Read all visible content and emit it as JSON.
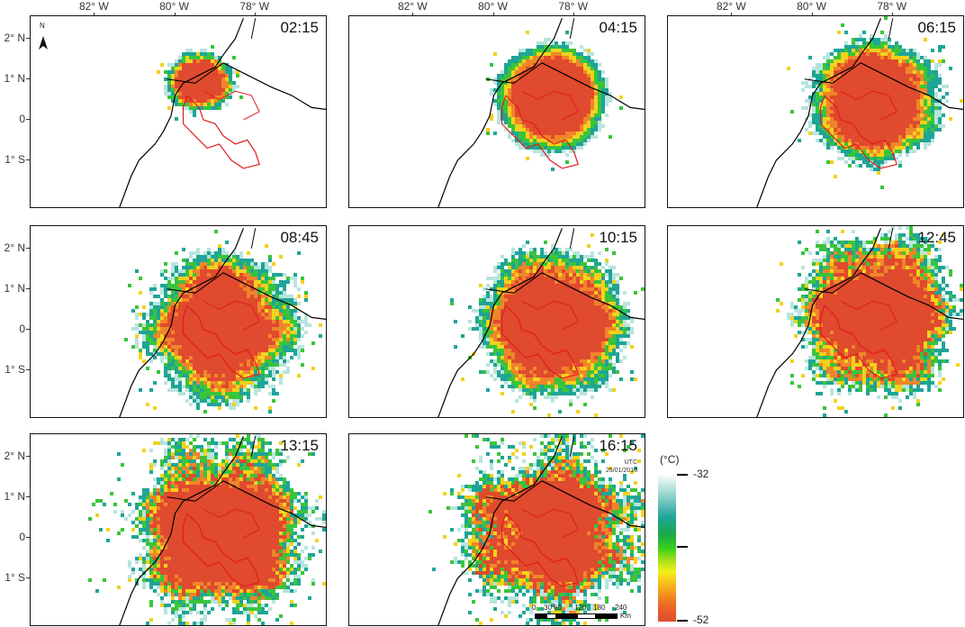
{
  "panels": [
    {
      "time": "02:15",
      "cx": -79.4,
      "cy": 1.0,
      "r": 0.75,
      "rough": 0.3
    },
    {
      "time": "04:15",
      "cx": -78.6,
      "cy": 0.6,
      "r": 1.3,
      "rough": 0.12
    },
    {
      "time": "06:15",
      "cx": -78.5,
      "cy": 0.5,
      "r": 1.5,
      "rough": 0.25
    },
    {
      "time": "08:45",
      "cx": -78.9,
      "cy": 0.1,
      "r": 1.7,
      "rough": 0.35
    },
    {
      "time": "10:15",
      "cx": -78.6,
      "cy": 0.2,
      "r": 1.7,
      "rough": 0.3
    },
    {
      "time": "12:45",
      "cx": -78.4,
      "cy": 0.4,
      "r": 1.8,
      "rough": 0.5
    },
    {
      "time": "13:15",
      "cx": -78.9,
      "cy": 0.2,
      "r": 2.0,
      "rough": 0.55
    },
    {
      "time": "16:15",
      "cx": -78.6,
      "cy": 0.2,
      "r": 1.9,
      "rough": 0.7
    }
  ],
  "lon_labels": [
    "82° W",
    "80° W",
    "78° W"
  ],
  "lat_labels": [
    "2° N",
    "1° N",
    "0",
    "1° S"
  ],
  "north_label": "N",
  "utc_label": "UTC",
  "date_label": "25/01/2016",
  "legend": {
    "unit": "(°C)",
    "top": "-32",
    "bottom": "-52"
  },
  "scale": {
    "ticks": [
      "0",
      "30",
      "60",
      "120",
      "180",
      "240"
    ],
    "unit": "Km"
  },
  "colors": {
    "core": "#e04a2e",
    "orange": "#f0852a",
    "yellow": "#f2d21c",
    "green": "#3ac43a",
    "teal": "#1ea596",
    "light": "#b8e4de",
    "outline": "#e11d1d",
    "border": "#000000"
  }
}
